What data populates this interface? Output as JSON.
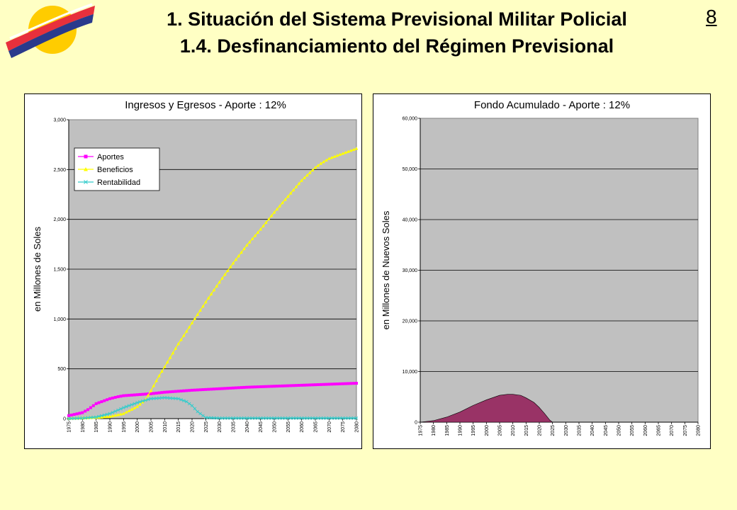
{
  "header": {
    "title_line1": "1. Situación del Sistema Previsional Militar Policial",
    "title_line2": "1.4. Desfinanciamiento del Régimen Previsional",
    "page_number": "8"
  },
  "colors": {
    "background": "#ffffc4",
    "plot_bg": "#c0c0c0",
    "aportes": "#ff00ff",
    "beneficios": "#ffff00",
    "rentabilidad": "#33cccc",
    "fondo": "#993366"
  },
  "chart_data": [
    {
      "type": "line",
      "title": "Ingresos y Egresos - Aporte : 12%",
      "ylabel": "en Millones de Soles",
      "xlabel": "",
      "ylim": [
        0,
        3000
      ],
      "yticks": [
        0,
        500,
        1000,
        1500,
        2000,
        2500,
        3000
      ],
      "ytick_labels": [
        "0",
        "500",
        "1,000",
        "1,500",
        "2,000",
        "2,500",
        "3,000"
      ],
      "xlim": [
        1975,
        2080
      ],
      "xticks": [
        "1975",
        "1980",
        "1985",
        "1990",
        "1995",
        "2000",
        "2005",
        "2010",
        "2015",
        "2020",
        "2025",
        "2030",
        "2035",
        "2040",
        "2045",
        "2050",
        "2055",
        "2060",
        "2065",
        "2070",
        "2075",
        "2080"
      ],
      "legend_position": "top-left",
      "series": [
        {
          "name": "Aportes",
          "color": "#ff00ff",
          "marker": "square",
          "x": [
            1975,
            1980,
            1982,
            1985,
            1987,
            1990,
            1993,
            1995,
            2000,
            2005,
            2010,
            2020,
            2030,
            2040,
            2050,
            2060,
            2070,
            2080
          ],
          "values": [
            30,
            60,
            90,
            150,
            170,
            200,
            220,
            230,
            240,
            250,
            265,
            285,
            300,
            315,
            325,
            335,
            345,
            355
          ]
        },
        {
          "name": "Beneficios",
          "color": "#ffff00",
          "marker": "triangle",
          "x": [
            1975,
            1980,
            1985,
            1990,
            1995,
            2000,
            2003,
            2005,
            2008,
            2010,
            2015,
            2020,
            2025,
            2030,
            2035,
            2040,
            2045,
            2050,
            2055,
            2060,
            2065,
            2067,
            2070,
            2075,
            2080
          ],
          "values": [
            0,
            5,
            10,
            20,
            50,
            120,
            190,
            280,
            430,
            520,
            750,
            960,
            1170,
            1370,
            1560,
            1740,
            1900,
            2070,
            2230,
            2390,
            2520,
            2560,
            2610,
            2660,
            2710
          ]
        },
        {
          "name": "Rentabilidad",
          "color": "#33cccc",
          "marker": "x",
          "x": [
            1975,
            1980,
            1985,
            1990,
            1995,
            2000,
            2005,
            2010,
            2015,
            2018,
            2020,
            2022,
            2025,
            2030,
            2040,
            2060,
            2080
          ],
          "values": [
            0,
            5,
            15,
            50,
            110,
            160,
            200,
            210,
            200,
            170,
            130,
            70,
            10,
            5,
            5,
            5,
            5
          ]
        }
      ]
    },
    {
      "type": "area",
      "title": "Fondo Acumulado - Aporte : 12%",
      "ylabel": "en Millones de Nuevos Soles",
      "xlabel": "",
      "ylim": [
        0,
        60000
      ],
      "yticks": [
        0,
        10000,
        20000,
        30000,
        40000,
        50000,
        60000
      ],
      "ytick_labels": [
        "0",
        "10,000",
        "20,000",
        "30,000",
        "40,000",
        "50,000",
        "60,000"
      ],
      "xlim": [
        1975,
        2080
      ],
      "xticks": [
        "1975",
        "1980",
        "1985",
        "1990",
        "1995",
        "2000",
        "2005",
        "2010",
        "2015",
        "2020",
        "2025",
        "2030",
        "2035",
        "2040",
        "2045",
        "2050",
        "2055",
        "2060",
        "2065",
        "2070",
        "2075",
        "2080"
      ],
      "series": [
        {
          "name": "Fondo Acumulado",
          "color": "#993366",
          "x": [
            1975,
            1980,
            1985,
            1990,
            1995,
            2000,
            2005,
            2008,
            2010,
            2013,
            2015,
            2018,
            2020,
            2022,
            2024,
            2025,
            2080
          ],
          "values": [
            0,
            300,
            1000,
            2000,
            3300,
            4400,
            5300,
            5500,
            5500,
            5300,
            4800,
            3900,
            2900,
            1700,
            400,
            0,
            0
          ]
        }
      ]
    }
  ]
}
